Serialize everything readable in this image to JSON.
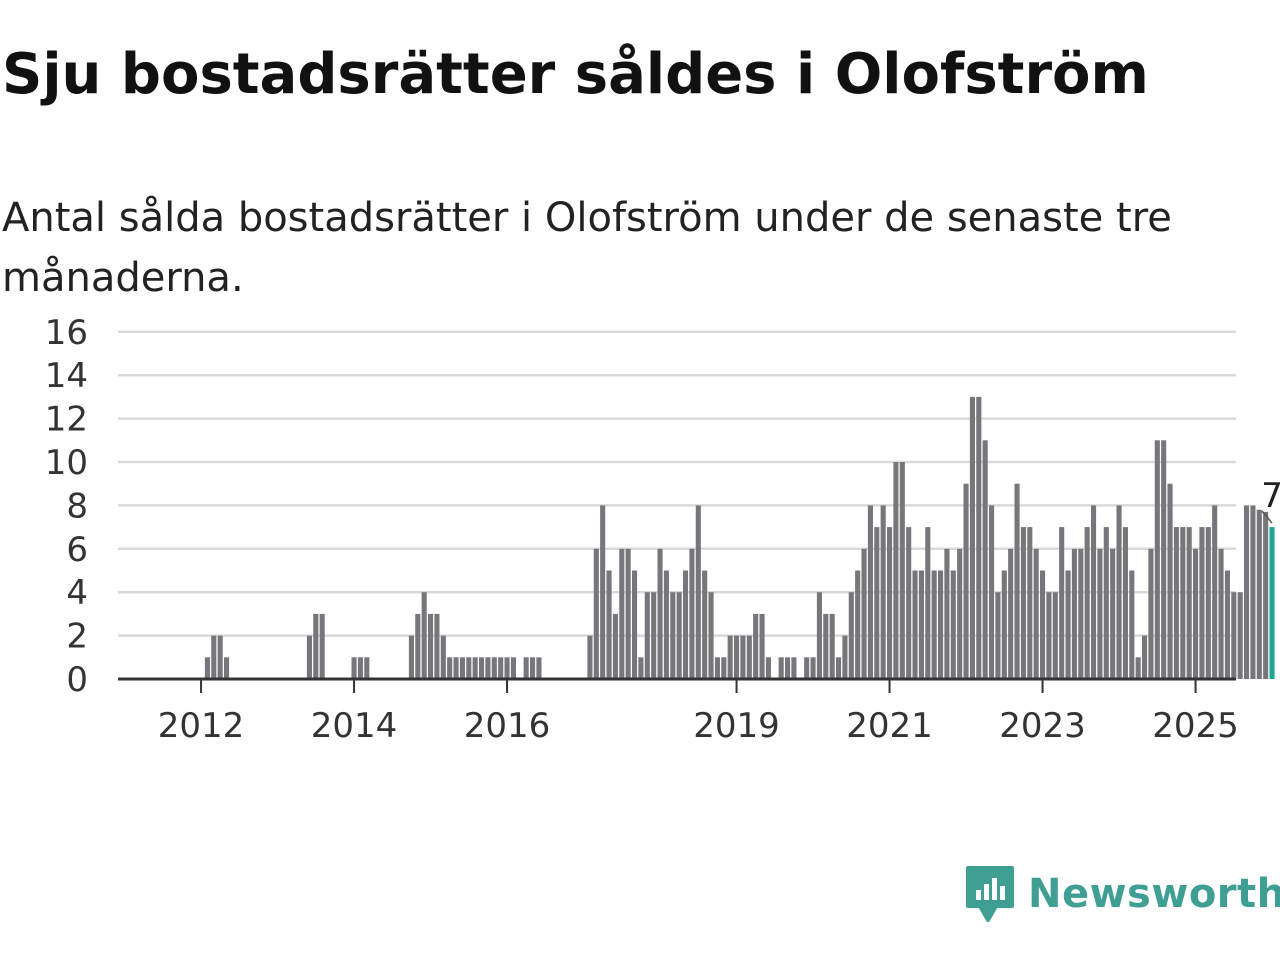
{
  "title": "Sju bostadsrätter såldes i Olofström",
  "subtitle": "Antal sålda bostadsrätter i Olofström under de senaste tre månaderna.",
  "brand": {
    "name": "Newsworthy"
  },
  "colors": {
    "bar": "#76767b",
    "highlight": "#1fa596",
    "grid": "#d9d9d9",
    "axis": "#333333",
    "brand": "#3f9f93"
  },
  "chart_data": {
    "type": "bar",
    "x_start": "2011-01",
    "grid": true,
    "ylim": [
      0,
      16
    ],
    "yticks": [
      0,
      2,
      4,
      6,
      8,
      10,
      12,
      14,
      16
    ],
    "xticks": [
      {
        "label": "2012",
        "month": "2012-01"
      },
      {
        "label": "2014",
        "month": "2014-01"
      },
      {
        "label": "2016",
        "month": "2016-01"
      },
      {
        "label": "2019",
        "month": "2019-01"
      },
      {
        "label": "2021",
        "month": "2021-01"
      },
      {
        "label": "2023",
        "month": "2023-01"
      },
      {
        "label": "2025",
        "month": "2025-01"
      }
    ],
    "values": [
      0,
      0,
      0,
      0,
      0,
      0,
      0,
      0,
      0,
      0,
      0,
      0,
      0,
      1,
      2,
      2,
      1,
      0,
      0,
      0,
      0,
      0,
      0,
      0,
      0,
      0,
      0,
      0,
      0,
      2,
      3,
      3,
      0,
      0,
      0,
      0,
      1,
      1,
      1,
      0,
      0,
      0,
      0,
      0,
      0,
      2,
      3,
      4,
      3,
      3,
      2,
      1,
      1,
      1,
      1,
      1,
      1,
      1,
      1,
      1,
      1,
      1,
      0,
      1,
      1,
      1,
      0,
      0,
      0,
      0,
      0,
      0,
      0,
      2,
      6,
      8,
      5,
      3,
      6,
      6,
      5,
      1,
      4,
      4,
      6,
      5,
      4,
      4,
      5,
      6,
      8,
      5,
      4,
      1,
      1,
      2,
      2,
      2,
      2,
      3,
      3,
      1,
      0,
      1,
      1,
      1,
      0,
      1,
      1,
      4,
      3,
      3,
      1,
      2,
      4,
      5,
      6,
      8,
      7,
      8,
      7,
      10,
      10,
      7,
      5,
      5,
      7,
      5,
      5,
      6,
      5,
      6,
      9,
      13,
      13,
      11,
      8,
      4,
      5,
      6,
      9,
      7,
      7,
      6,
      5,
      4,
      4,
      7,
      5,
      6,
      6,
      7,
      8,
      6,
      7,
      6,
      8,
      7,
      5,
      1,
      2,
      6,
      11,
      11,
      9,
      7,
      7,
      7,
      6,
      7,
      7,
      8,
      6,
      5,
      4,
      4,
      8,
      8,
      7.8,
      7.7,
      7
    ],
    "highlight_last": true,
    "annotation": "7"
  }
}
